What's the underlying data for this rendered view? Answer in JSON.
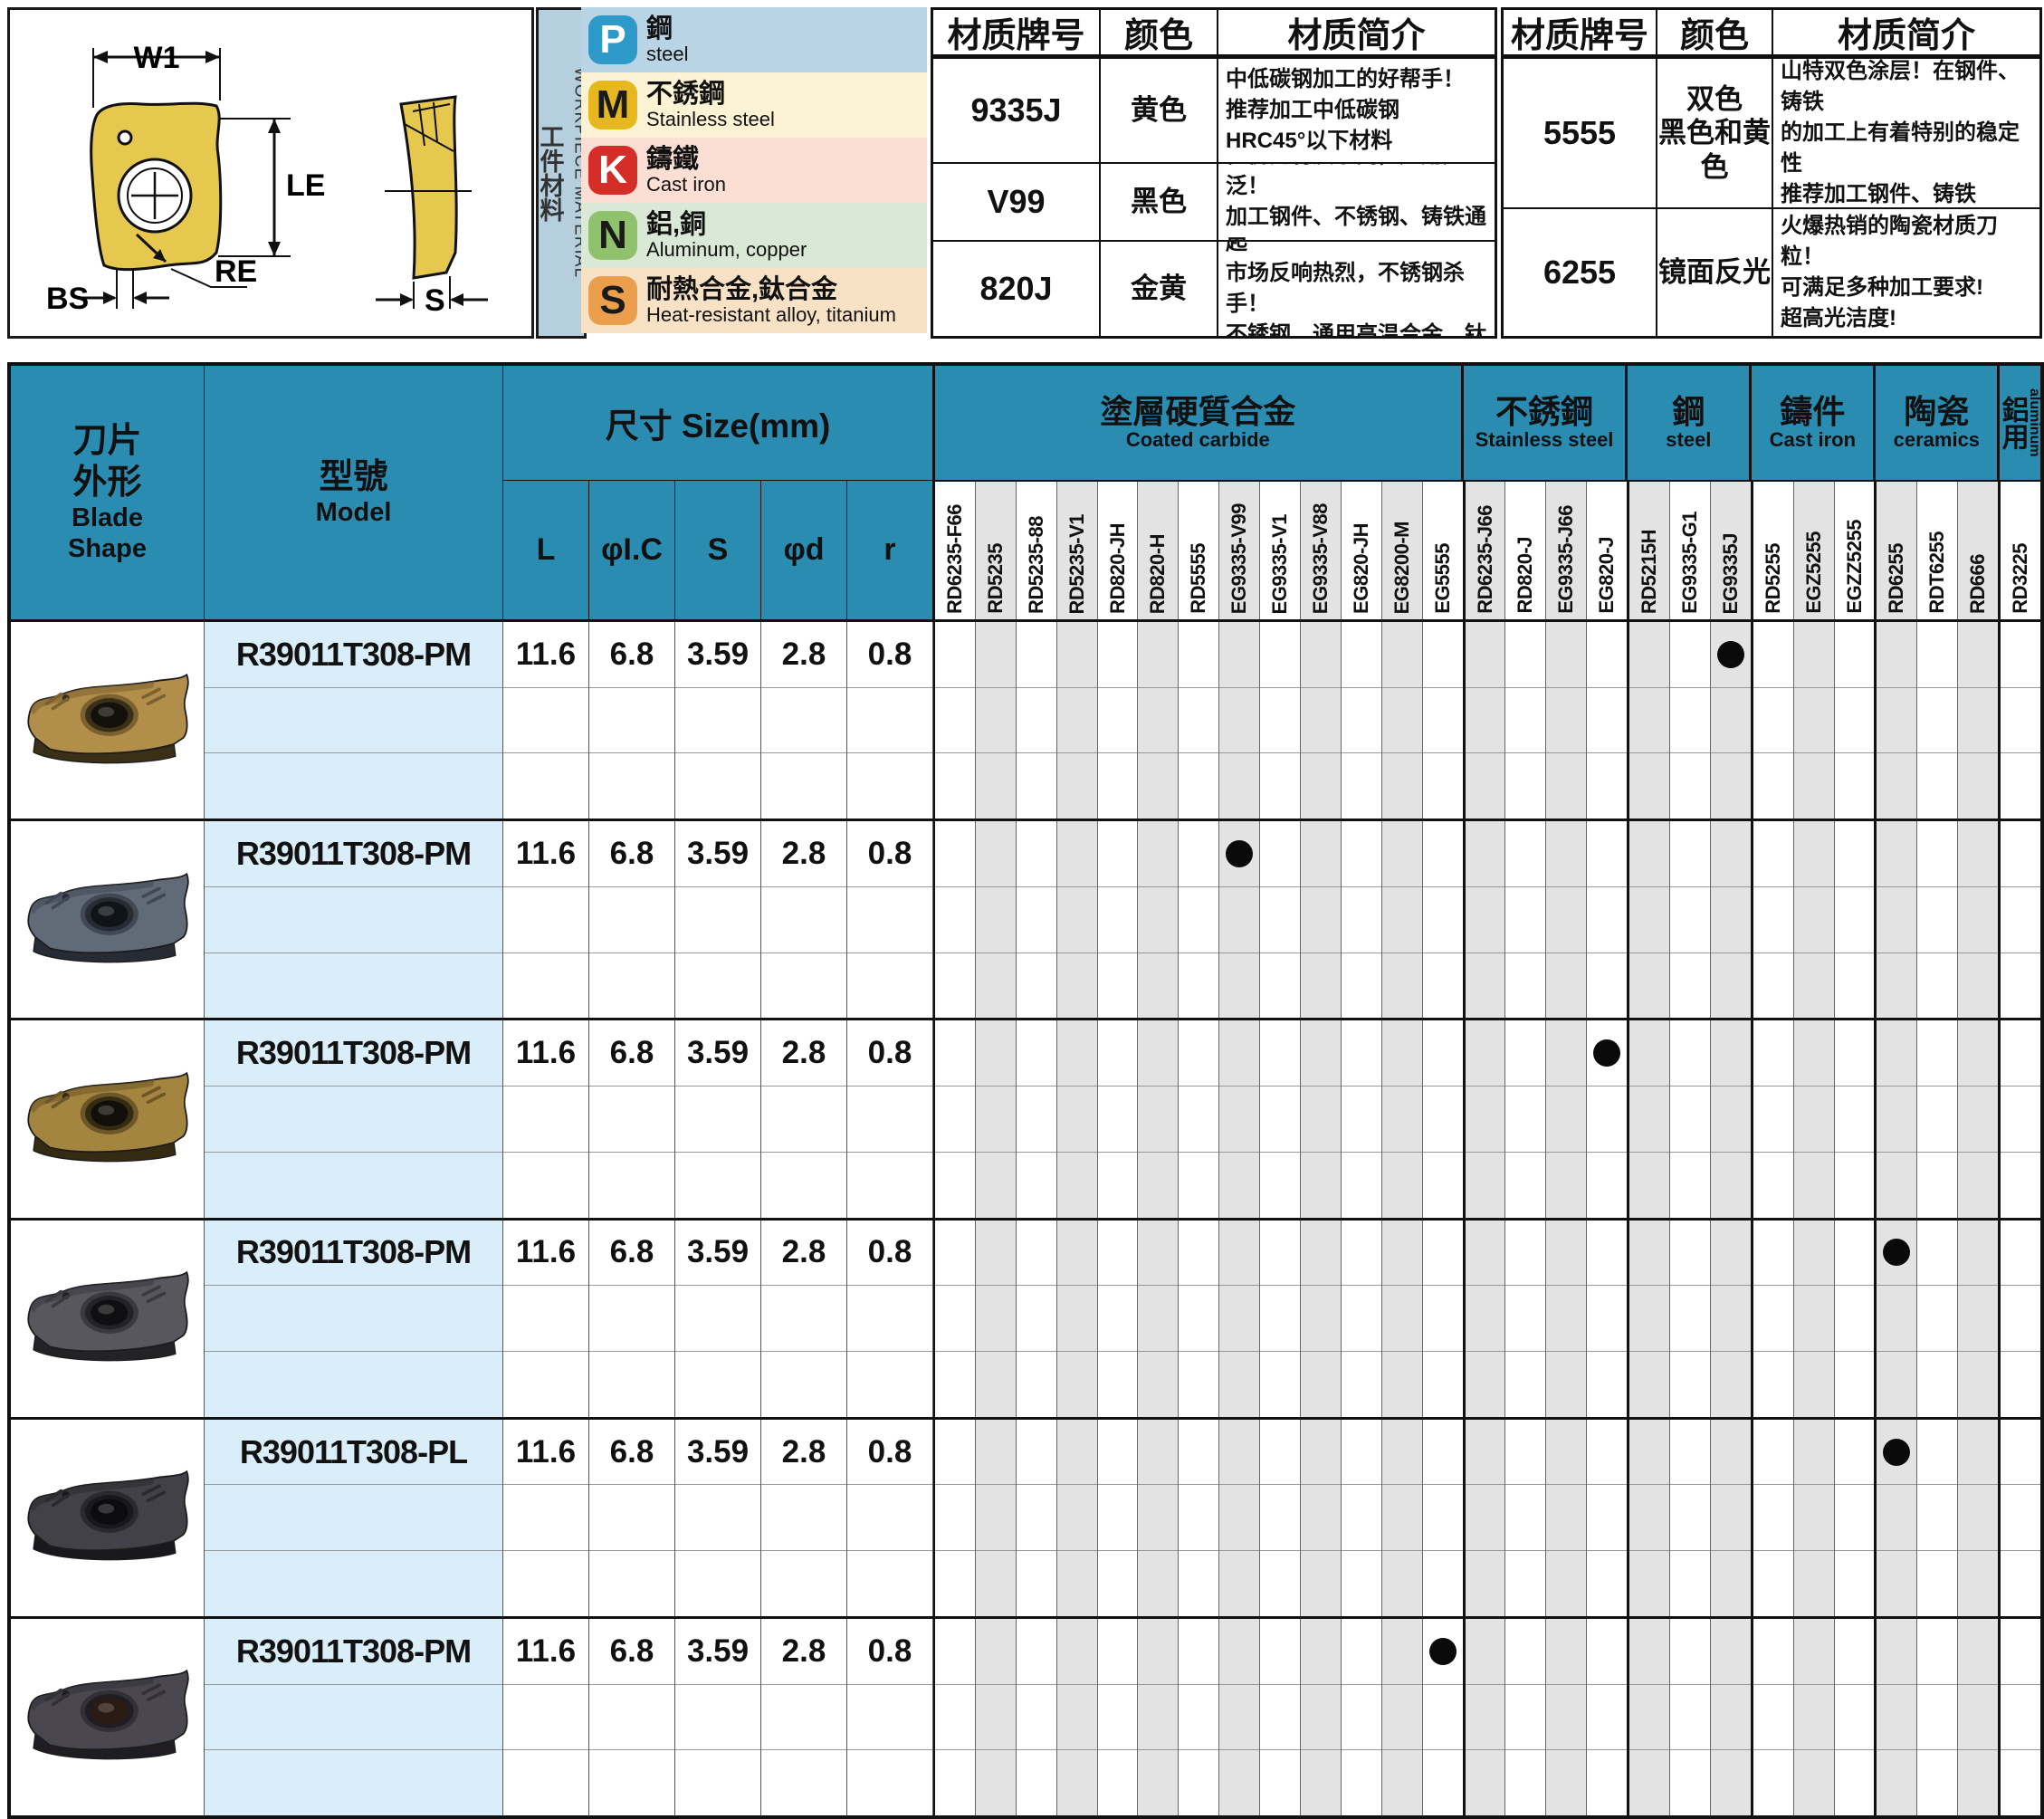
{
  "colors": {
    "accent_teal": "#2b8cb2",
    "model_col_bg": "#d9eef8",
    "stripe_gray": "#e3e3e3",
    "wp_bar_bg": "#b5cfdf",
    "dot_color": "#0a0a0a"
  },
  "diagram": {
    "labels": {
      "w1": "W1",
      "le": "LE",
      "re": "RE",
      "bs": "BS",
      "s": "S"
    }
  },
  "workpiece_panel": {
    "vertical_title_cn": "工件材料",
    "vertical_title_en": "WORKPIECE MATERIAL",
    "items": [
      {
        "code": "P",
        "cn": "鋼",
        "en": "steel",
        "icon_color": "#2d9ac9",
        "letter_color": "#ffffff",
        "row_bg": "#b9d4e4"
      },
      {
        "code": "M",
        "cn": "不銹鋼",
        "en": "Stainless steel",
        "icon_color": "#e6b71f",
        "letter_color": "#1a1a1a",
        "row_bg": "#fbf3d3"
      },
      {
        "code": "K",
        "cn": "鑄鐵",
        "en": "Cast iron",
        "icon_color": "#d52d27",
        "letter_color": "#ffffff",
        "row_bg": "#fbded4"
      },
      {
        "code": "N",
        "cn": "鋁,銅",
        "en": "Aluminum, copper",
        "icon_color": "#90c16c",
        "letter_color": "#1a1a1a",
        "row_bg": "#d9e9d5"
      },
      {
        "code": "S",
        "cn": "耐熱合金,鈦合金",
        "en": "Heat-resistant alloy, titanium",
        "icon_color": "#eb9f4d",
        "letter_color": "#1a1a1a",
        "row_bg": "#f8e2c5"
      }
    ]
  },
  "grade_tables": [
    {
      "headers": [
        "材质牌号",
        "颜色",
        "材质简介"
      ],
      "rows": [
        {
          "grade": "9335J",
          "color": "黄色",
          "desc": [
            "中低碳钢加工的好帮手！",
            "推荐加工中低碳钢",
            "HRC45°以下材料"
          ]
        },
        {
          "grade": "V99",
          "color": "黑色",
          "desc": [
            "性价比材质系列，应用广泛！",
            "加工钢件、不锈钢、铸铁通用"
          ]
        },
        {
          "grade": "820J",
          "color": "金黄",
          "desc": [
            "高端巴尔查斯涂层！自发售起",
            "市场反响热烈，不锈钢杀手！",
            "不锈钢、通用高温合金、钛合金"
          ]
        }
      ]
    },
    {
      "headers": [
        "材质牌号",
        "颜色",
        "材质简介"
      ],
      "rows": [
        {
          "grade": "5555",
          "color": "双色\n黑色和黄色",
          "desc": [
            "山特双色涂层！在钢件、铸铁",
            "的加工上有着特别的稳定性",
            "推荐加工钢件、铸铁"
          ]
        },
        {
          "grade": "6255",
          "color": "镜面反光",
          "desc": [
            "火爆热销的陶瓷材质刀粒！",
            "可满足多种加工要求!",
            "超高光洁度!"
          ]
        }
      ]
    }
  ],
  "main_table": {
    "blade_header_cn": "刀片\n外形",
    "blade_header_en": "Blade\nShape",
    "model_header_cn": "型號",
    "model_header_en": "Model",
    "size_header": "尺寸 Size(mm)",
    "size_columns": [
      "L",
      "φI.C",
      "S",
      "φd",
      "r"
    ],
    "groups": [
      {
        "cn": "塗層硬質合金",
        "en": "Coated carbide",
        "columns": [
          "RD6235-F66",
          "RD5235",
          "RD5235-88",
          "RD5235-V1",
          "RD820-JH",
          "RD820-H",
          "RD5555",
          "EG9335-V99",
          "EG9335-V1",
          "EG9335-V88",
          "EG820-JH",
          "EG8200-M",
          "EG5555"
        ]
      },
      {
        "cn": "不銹鋼",
        "en": "Stainless steel",
        "columns": [
          "RD6235-J66",
          "RD820-J",
          "EG9335-J66",
          "EG820-J"
        ]
      },
      {
        "cn": "鋼",
        "en": "steel",
        "columns": [
          "RD5215H",
          "EG9335-G1",
          "EG9335J"
        ]
      },
      {
        "cn": "鑄件",
        "en": "Cast iron",
        "columns": [
          "RD5255",
          "EGZ5255",
          "EGZZ5255"
        ]
      },
      {
        "cn": "陶瓷",
        "en": "ceramics",
        "columns": [
          "RD6255",
          "RDT6255",
          "RD666"
        ]
      },
      {
        "cn": "鋁用",
        "en": "aluminum",
        "vertical_header": true,
        "columns": [
          "RD3225"
        ]
      }
    ],
    "rows": [
      {
        "model": "R39011T308-PM",
        "sizes": [
          "11.6",
          "6.8",
          "3.59",
          "2.8",
          "0.8"
        ],
        "dot": "EG9335J",
        "insert": {
          "body": "#b28e4b",
          "shade": "#7a612f",
          "dark": "#3a2f17",
          "hole": "#14110c"
        }
      },
      {
        "model": "R39011T308-PM",
        "sizes": [
          "11.6",
          "6.8",
          "3.59",
          "2.8",
          "0.8"
        ],
        "dot": "EG9335-V99",
        "insert": {
          "body": "#616b78",
          "shade": "#414854",
          "dark": "#272b33",
          "hole": "#101317"
        }
      },
      {
        "model": "R39011T308-PM",
        "sizes": [
          "11.6",
          "6.8",
          "3.59",
          "2.8",
          "0.8"
        ],
        "dot": "EG820-J",
        "insert": {
          "body": "#a3853f",
          "shade": "#6d5628",
          "dark": "#352a12",
          "hole": "#120f0a"
        }
      },
      {
        "model": "R39011T308-PM",
        "sizes": [
          "11.6",
          "6.8",
          "3.59",
          "2.8",
          "0.8"
        ],
        "dot": "RD6255",
        "insert": {
          "body": "#58575d",
          "shade": "#3a393f",
          "dark": "#232226",
          "hole": "#0f0f11"
        }
      },
      {
        "model": "R39011T308-PL",
        "sizes": [
          "11.6",
          "6.8",
          "3.59",
          "2.8",
          "0.8"
        ],
        "dot": "RD6255",
        "insert": {
          "body": "#424147",
          "shade": "#2a292e",
          "dark": "#19181c",
          "hole": "#0c0c0e"
        }
      },
      {
        "model": "R39011T308-PM",
        "sizes": [
          "11.6",
          "6.8",
          "3.59",
          "2.8",
          "0.8"
        ],
        "dot": "EG5555",
        "insert": {
          "body": "#4b4750",
          "shade": "#322f36",
          "dark": "#1f1c22",
          "hole": "#2a1c12"
        }
      }
    ]
  }
}
